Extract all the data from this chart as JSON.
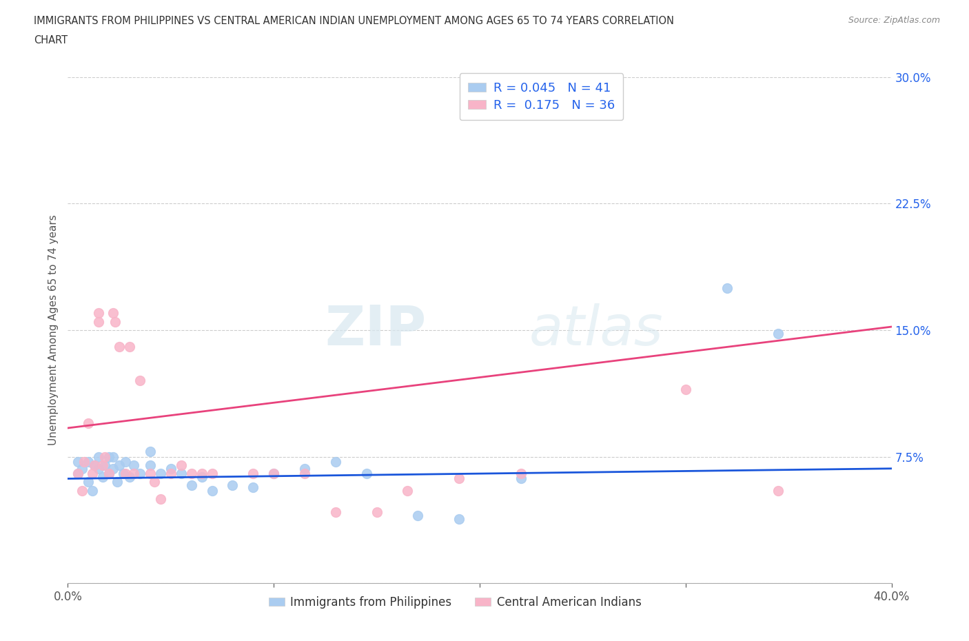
{
  "title_line1": "IMMIGRANTS FROM PHILIPPINES VS CENTRAL AMERICAN INDIAN UNEMPLOYMENT AMONG AGES 65 TO 74 YEARS CORRELATION",
  "title_line2": "CHART",
  "source": "Source: ZipAtlas.com",
  "ylabel": "Unemployment Among Ages 65 to 74 years",
  "xlim": [
    0.0,
    0.4
  ],
  "ylim": [
    0.0,
    0.3
  ],
  "ytick_vals": [
    0.0,
    0.075,
    0.15,
    0.225,
    0.3
  ],
  "ytick_labels": [
    "",
    "7.5%",
    "15.0%",
    "22.5%",
    "30.0%"
  ],
  "xtick_vals": [
    0.0,
    0.1,
    0.2,
    0.3,
    0.4
  ],
  "xtick_labels": [
    "0.0%",
    "",
    "",
    "",
    "40.0%"
  ],
  "series_blue": {
    "R": 0.045,
    "N": 41,
    "color": "#aaccf0",
    "line_color": "#1a56db",
    "label": "Immigrants from Philippines",
    "x": [
      0.005,
      0.005,
      0.007,
      0.01,
      0.01,
      0.012,
      0.013,
      0.015,
      0.015,
      0.017,
      0.018,
      0.02,
      0.02,
      0.022,
      0.022,
      0.024,
      0.025,
      0.027,
      0.028,
      0.03,
      0.032,
      0.035,
      0.04,
      0.04,
      0.045,
      0.05,
      0.055,
      0.06,
      0.065,
      0.07,
      0.08,
      0.09,
      0.1,
      0.115,
      0.13,
      0.145,
      0.17,
      0.19,
      0.22,
      0.32,
      0.345
    ],
    "y": [
      0.065,
      0.072,
      0.068,
      0.06,
      0.072,
      0.055,
      0.07,
      0.068,
      0.075,
      0.063,
      0.07,
      0.065,
      0.075,
      0.068,
      0.075,
      0.06,
      0.07,
      0.065,
      0.072,
      0.063,
      0.07,
      0.065,
      0.07,
      0.078,
      0.065,
      0.068,
      0.065,
      0.058,
      0.063,
      0.055,
      0.058,
      0.057,
      0.065,
      0.068,
      0.072,
      0.065,
      0.04,
      0.038,
      0.062,
      0.175,
      0.148
    ]
  },
  "series_pink": {
    "R": 0.175,
    "N": 36,
    "color": "#f8b4c8",
    "line_color": "#e8427c",
    "label": "Central American Indians",
    "x": [
      0.005,
      0.007,
      0.008,
      0.01,
      0.012,
      0.013,
      0.015,
      0.015,
      0.017,
      0.018,
      0.02,
      0.022,
      0.023,
      0.025,
      0.028,
      0.03,
      0.032,
      0.035,
      0.04,
      0.042,
      0.045,
      0.05,
      0.055,
      0.06,
      0.065,
      0.07,
      0.09,
      0.1,
      0.115,
      0.13,
      0.15,
      0.165,
      0.19,
      0.22,
      0.3,
      0.345
    ],
    "y": [
      0.065,
      0.055,
      0.072,
      0.095,
      0.065,
      0.07,
      0.16,
      0.155,
      0.07,
      0.075,
      0.065,
      0.16,
      0.155,
      0.14,
      0.065,
      0.14,
      0.065,
      0.12,
      0.065,
      0.06,
      0.05,
      0.065,
      0.07,
      0.065,
      0.065,
      0.065,
      0.065,
      0.065,
      0.065,
      0.042,
      0.042,
      0.055,
      0.062,
      0.065,
      0.115,
      0.055
    ]
  },
  "pink_line": {
    "x0": 0.0,
    "y0": 0.092,
    "x1": 0.4,
    "y1": 0.152
  },
  "blue_line": {
    "x0": 0.0,
    "y0": 0.062,
    "x1": 0.4,
    "y1": 0.068
  },
  "watermark_zip": "ZIP",
  "watermark_atlas": "atlas",
  "legend_color": "#2563eb",
  "background_color": "#ffffff",
  "grid_color": "#cccccc",
  "marker_size": 100
}
